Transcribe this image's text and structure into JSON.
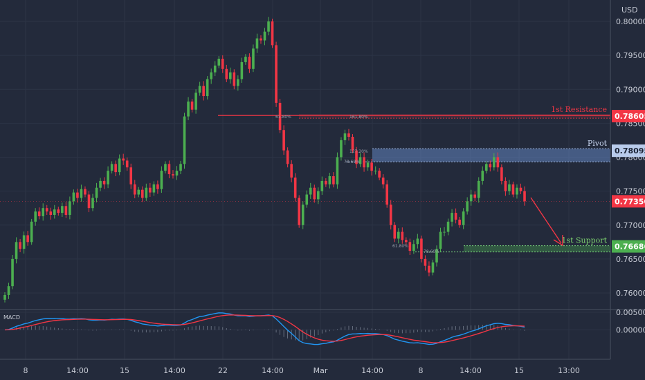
{
  "chart_data": {
    "type": "candlestick",
    "currency": "USD",
    "y_ticks": [
      "0.80000",
      "0.79500",
      "0.79000",
      "0.78500",
      "0.78000",
      "0.77500",
      "0.77000",
      "0.76500",
      "0.76000"
    ],
    "ylim": [
      0.757,
      0.8035
    ],
    "x_ticks": [
      "8",
      "14:00",
      "15",
      "14:00",
      "22",
      "14:00",
      "Mar",
      "14:00",
      "8",
      "14:00",
      "15",
      "13:00"
    ],
    "levels": [
      {
        "label": "1st Resistance",
        "value": 0.78605,
        "text": "0.78605",
        "color": "#f23645"
      },
      {
        "label": "Pivot",
        "value": 0.78095,
        "text": "0.78095",
        "color": "#7c9fd6"
      },
      {
        "label": "1st Support",
        "value": 0.76686,
        "text": "0.76686",
        "color": "#4caf50"
      }
    ],
    "current_price": {
      "value": 0.7735,
      "text": "0.77350",
      "color": "#f23645"
    },
    "fib_labels": [
      "61.80%",
      "161.80%",
      "127.20%",
      "78.60%",
      "61.80%",
      "78.60%"
    ],
    "macd": {
      "label": "MACD",
      "y_ticks": [
        "0.00500",
        "0.00000"
      ],
      "ylim": [
        -0.008,
        0.0065
      ]
    },
    "closes": [
      0.7597,
      0.761,
      0.765,
      0.7675,
      0.7665,
      0.7685,
      0.7675,
      0.7705,
      0.772,
      0.7713,
      0.7725,
      0.772,
      0.7715,
      0.7723,
      0.7718,
      0.7728,
      0.7715,
      0.7735,
      0.7748,
      0.774,
      0.7753,
      0.7745,
      0.7725,
      0.774,
      0.7755,
      0.7765,
      0.776,
      0.778,
      0.779,
      0.7778,
      0.7798,
      0.7795,
      0.7785,
      0.776,
      0.7745,
      0.7752,
      0.774,
      0.7755,
      0.7748,
      0.776,
      0.7753,
      0.778,
      0.779,
      0.7775,
      0.7773,
      0.778,
      0.779,
      0.786,
      0.7882,
      0.787,
      0.7895,
      0.7905,
      0.789,
      0.7915,
      0.7925,
      0.7935,
      0.7945,
      0.793,
      0.7915,
      0.7925,
      0.7905,
      0.7915,
      0.794,
      0.7948,
      0.793,
      0.796,
      0.7975,
      0.7972,
      0.7985,
      0.8,
      0.7965,
      0.788,
      0.784,
      0.781,
      0.779,
      0.777,
      0.774,
      0.77,
      0.773,
      0.7745,
      0.7755,
      0.7738,
      0.775,
      0.7765,
      0.776,
      0.7772,
      0.776,
      0.78,
      0.7825,
      0.7835,
      0.783,
      0.781,
      0.779,
      0.78,
      0.7785,
      0.7792,
      0.778,
      0.778,
      0.777,
      0.776,
      0.773,
      0.77,
      0.768,
      0.769,
      0.7678,
      0.7675,
      0.7662,
      0.7672,
      0.768,
      0.765,
      0.764,
      0.763,
      0.7645,
      0.7665,
      0.769,
      0.769,
      0.7705,
      0.7718,
      0.7708,
      0.77,
      0.772,
      0.7735,
      0.7745,
      0.774,
      0.7765,
      0.778,
      0.779,
      0.7785,
      0.78,
      0.7785,
      0.7765,
      0.775,
      0.776,
      0.7745,
      0.7755,
      0.775,
      0.7735
    ]
  }
}
